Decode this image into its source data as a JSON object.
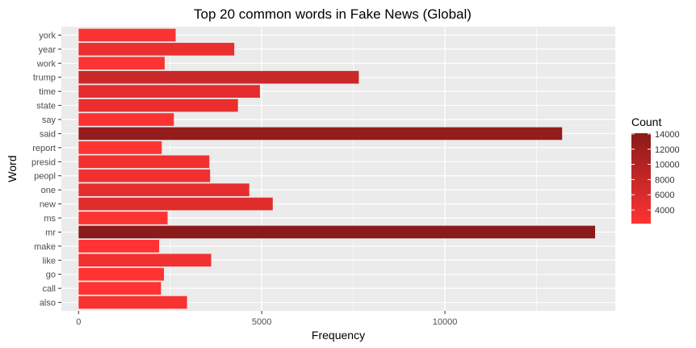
{
  "chart_data": {
    "type": "bar",
    "orientation": "horizontal",
    "title": "Top 20 common words in Fake News (Global)",
    "xlabel": "Frequency",
    "ylabel": "Word",
    "xlim": [
      -470,
      14650
    ],
    "xticks": [
      0,
      5000,
      10000
    ],
    "x_tick_labels": [
      "0",
      "5000",
      "10000"
    ],
    "grid": true,
    "legend_position": "right",
    "categories": [
      "york",
      "year",
      "work",
      "trump",
      "time",
      "state",
      "say",
      "said",
      "report",
      "presid",
      "peopl",
      "one",
      "new",
      "ms",
      "mr",
      "make",
      "like",
      "go",
      "call",
      "also"
    ],
    "values": [
      2650,
      4250,
      2350,
      7650,
      4950,
      4350,
      2600,
      13200,
      2270,
      3570,
      3590,
      4660,
      5300,
      2430,
      14100,
      2200,
      3620,
      2330,
      2250,
      2960
    ],
    "legend": {
      "title": "Count",
      "ticks": [
        4000,
        6000,
        8000,
        10000,
        12000,
        14000
      ],
      "tick_labels": [
        "4000",
        "6000",
        "8000",
        "10000",
        "12000",
        "14000"
      ],
      "range": [
        2200,
        14100
      ]
    },
    "colors": {
      "low": "#ff3333",
      "high": "#8b1a1a",
      "panel": "#ebebeb",
      "grid": "#ffffff",
      "text": "#4d4d4d"
    }
  }
}
